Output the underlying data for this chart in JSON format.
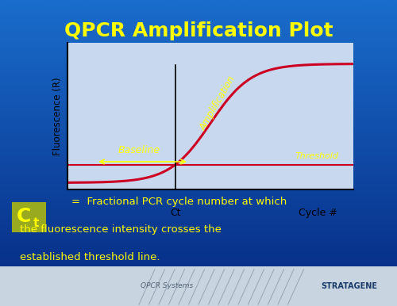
{
  "title": "QPCR Amplification Plot",
  "title_color": "#FFFF00",
  "title_fontsize": 18,
  "bg_color_top": "#1a6dcc",
  "bg_color_bottom": "#0a3a8a",
  "plot_bg": "#4a90d9",
  "axis_color": "black",
  "curve_color": "#cc0022",
  "threshold_color": "#cc0022",
  "ct_line_color": "black",
  "ylabel": "Fluorescence (R)",
  "xlabel": "Cycle #",
  "ct_label": "Ct",
  "baseline_label": "Baseline",
  "amplification_label": "Amplification",
  "threshold_label": "Threshold",
  "annotation_color": "#FFFF00",
  "annotation_italic": true,
  "bottom_text_color": "#FFFF00",
  "ct_box_color": "#808040",
  "ct_symbol": "C",
  "ct_subscript": "t",
  "bottom_line1": "=  Fractional PCR cycle number at which",
  "bottom_line2": "the fluorescence intensity crosses the",
  "bottom_line3": "established threshold line.",
  "footer_text": "QPCR Systems",
  "footer_color": "#cccccc",
  "stratagene_color": "#ffffff",
  "white_panel_color": "#d0d8e0"
}
